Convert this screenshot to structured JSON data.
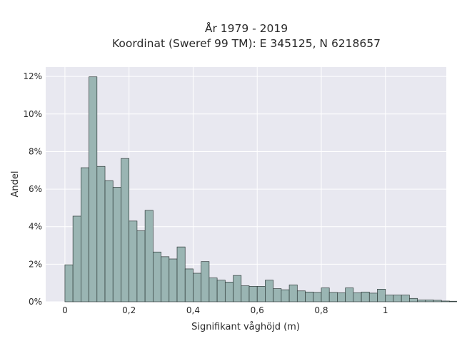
{
  "chart_data": {
    "type": "bar",
    "title_lines": [
      "År 1979 - 2019",
      "Koordinat (Sweref 99 TM): E 345125, N 6218657"
    ],
    "xlabel": "Signifikant våghöjd (m)",
    "ylabel": "Andel",
    "xlim": [
      -0.06,
      1.19
    ],
    "ylim": [
      0,
      0.125
    ],
    "x_ticks": [
      0,
      0.2,
      0.4,
      0.6,
      0.8,
      1
    ],
    "x_tick_labels": [
      "0",
      "0,2",
      "0,4",
      "0,6",
      "0,8",
      "1"
    ],
    "y_ticks": [
      0,
      0.02,
      0.04,
      0.06,
      0.08,
      0.1,
      0.12
    ],
    "y_tick_labels": [
      "0%",
      "2%",
      "4%",
      "6%",
      "8%",
      "10%",
      "12%"
    ],
    "bin_width": 0.025,
    "bin_start": 0,
    "values": [
      0.0197,
      0.0456,
      0.0714,
      0.1198,
      0.0721,
      0.0645,
      0.061,
      0.0763,
      0.043,
      0.0378,
      0.0487,
      0.0265,
      0.024,
      0.0228,
      0.0292,
      0.0175,
      0.0152,
      0.0214,
      0.0127,
      0.0115,
      0.0105,
      0.014,
      0.0085,
      0.0082,
      0.0082,
      0.0115,
      0.007,
      0.0064,
      0.009,
      0.0058,
      0.0052,
      0.005,
      0.0074,
      0.005,
      0.0048,
      0.0074,
      0.0048,
      0.0052,
      0.0046,
      0.0067,
      0.0036,
      0.0036,
      0.0036,
      0.0018,
      0.001,
      0.001,
      0.0008,
      0.0004,
      0.0003,
      0.0003
    ],
    "grid": true,
    "colors": {
      "plot_background": "#e8e8f0",
      "gridline": "#ffffff",
      "bar_fill": "#9ab5b3",
      "bar_edge": "#2f3b3a"
    }
  }
}
